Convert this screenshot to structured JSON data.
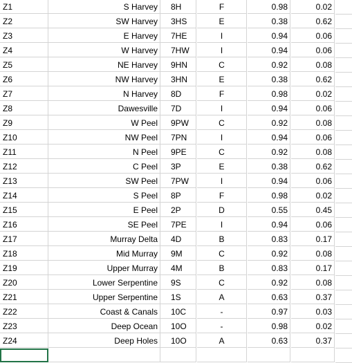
{
  "rows": [
    [
      "Z1",
      "S Harvey",
      "8H",
      "F",
      "0.98",
      "0.02"
    ],
    [
      "Z2",
      "SW Harvey",
      "3HS",
      "E",
      "0.38",
      "0.62"
    ],
    [
      "Z3",
      "E Harvey",
      "7HE",
      "I",
      "0.94",
      "0.06"
    ],
    [
      "Z4",
      "W Harvey",
      "7HW",
      "I",
      "0.94",
      "0.06"
    ],
    [
      "Z5",
      "NE Harvey",
      "9HN",
      "C",
      "0.92",
      "0.08"
    ],
    [
      "Z6",
      "NW Harvey",
      "3HN",
      "E",
      "0.38",
      "0.62"
    ],
    [
      "Z7",
      "N Harvey",
      "8D",
      "F",
      "0.98",
      "0.02"
    ],
    [
      "Z8",
      "Dawesville",
      "7D",
      "I",
      "0.94",
      "0.06"
    ],
    [
      "Z9",
      "W Peel",
      "9PW",
      "C",
      "0.92",
      "0.08"
    ],
    [
      "Z10",
      "NW Peel",
      "7PN",
      "I",
      "0.94",
      "0.06"
    ],
    [
      "Z11",
      "N Peel",
      "9PE",
      "C",
      "0.92",
      "0.08"
    ],
    [
      "Z12",
      "C Peel",
      "3P",
      "E",
      "0.38",
      "0.62"
    ],
    [
      "Z13",
      "SW Peel",
      "7PW",
      "I",
      "0.94",
      "0.06"
    ],
    [
      "Z14",
      "S Peel",
      "8P",
      "F",
      "0.98",
      "0.02"
    ],
    [
      "Z15",
      "E Peel",
      "2P",
      "D",
      "0.55",
      "0.45"
    ],
    [
      "Z16",
      "SE Peel",
      "7PE",
      "I",
      "0.94",
      "0.06"
    ],
    [
      "Z17",
      "Murray Delta",
      "4D",
      "B",
      "0.83",
      "0.17"
    ],
    [
      "Z18",
      "Mid Murray",
      "9M",
      "C",
      "0.92",
      "0.08"
    ],
    [
      "Z19",
      "Upper Murray",
      "4M",
      "B",
      "0.83",
      "0.17"
    ],
    [
      "Z20",
      "Lower Serpentine",
      "9S",
      "C",
      "0.92",
      "0.08"
    ],
    [
      "Z21",
      "Upper Serpentine",
      "1S",
      "A",
      "0.63",
      "0.37"
    ],
    [
      "Z22",
      "Coast & Canals",
      "10C",
      "-",
      "0.97",
      "0.03"
    ],
    [
      "Z23",
      "Deep Ocean",
      "10O",
      "-",
      "0.98",
      "0.02"
    ],
    [
      "Z24",
      "Deep Holes",
      "10O",
      "A",
      "0.63",
      "0.37"
    ]
  ],
  "colors": {
    "gridline": "#d4d4d4",
    "selection": "#217346"
  }
}
